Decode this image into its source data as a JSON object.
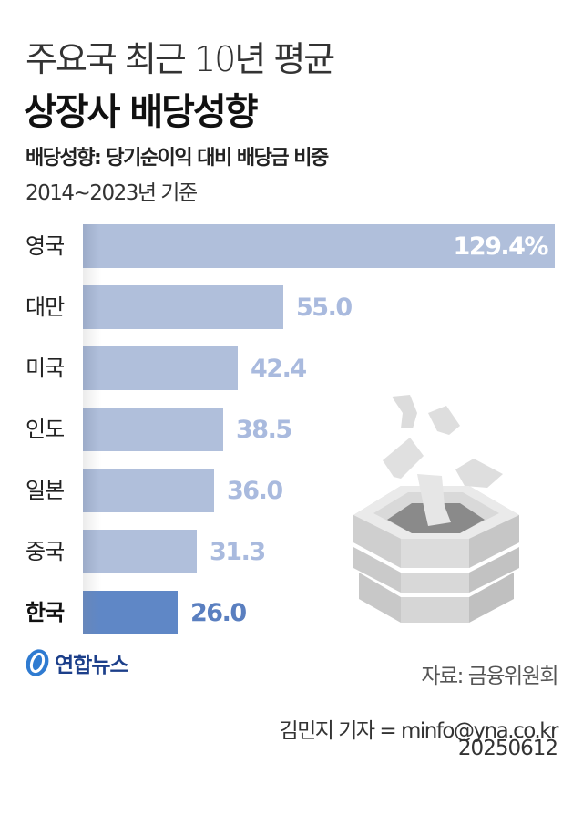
{
  "header": {
    "title_line1": "주요국 최근 10년 평균",
    "title_line2": "상장사 배당성향",
    "subtitle": "배당성향: 당기순이익 대비 배당금 비중",
    "period": "2014~2023년 기준"
  },
  "colors": {
    "bar": "#b0bfdb",
    "bar_highlight": "#5f87c6",
    "value_text": "#a9bade",
    "value_highlight": "#5a7fc0"
  },
  "bars": [
    {
      "label": "영국",
      "value_text": "129.4%"
    },
    {
      "label": "대만",
      "value_text": "55.0"
    },
    {
      "label": "미국",
      "value_text": "42.4"
    },
    {
      "label": "인도",
      "value_text": "38.5"
    },
    {
      "label": "일본",
      "value_text": "36.0"
    },
    {
      "label": "중국",
      "value_text": "31.3"
    },
    {
      "label": "한국",
      "value_text": "26.0"
    }
  ],
  "footer": {
    "logo_text": "연합뉴스",
    "source": "자료: 금융위원회",
    "reporter": "김민지 기자 = minfo@yna.co.kr",
    "date": "20250612"
  },
  "chart_data": {
    "type": "bar",
    "orientation": "horizontal",
    "title": "주요국 최근 10년 평균 상장사 배당성향",
    "subtitle": "배당성향: 당기순이익 대비 배당금 비중",
    "note": "2014~2023년 기준",
    "categories": [
      "영국",
      "대만",
      "미국",
      "인도",
      "일본",
      "중국",
      "한국"
    ],
    "values": [
      129.4,
      55.0,
      42.4,
      38.5,
      36.0,
      31.3,
      26.0
    ],
    "unit": "%",
    "highlight": "한국",
    "xlabel": "",
    "ylabel": "",
    "xlim": [
      0,
      130
    ],
    "grid": false,
    "legend": null,
    "source": "자료: 금융위원회"
  }
}
